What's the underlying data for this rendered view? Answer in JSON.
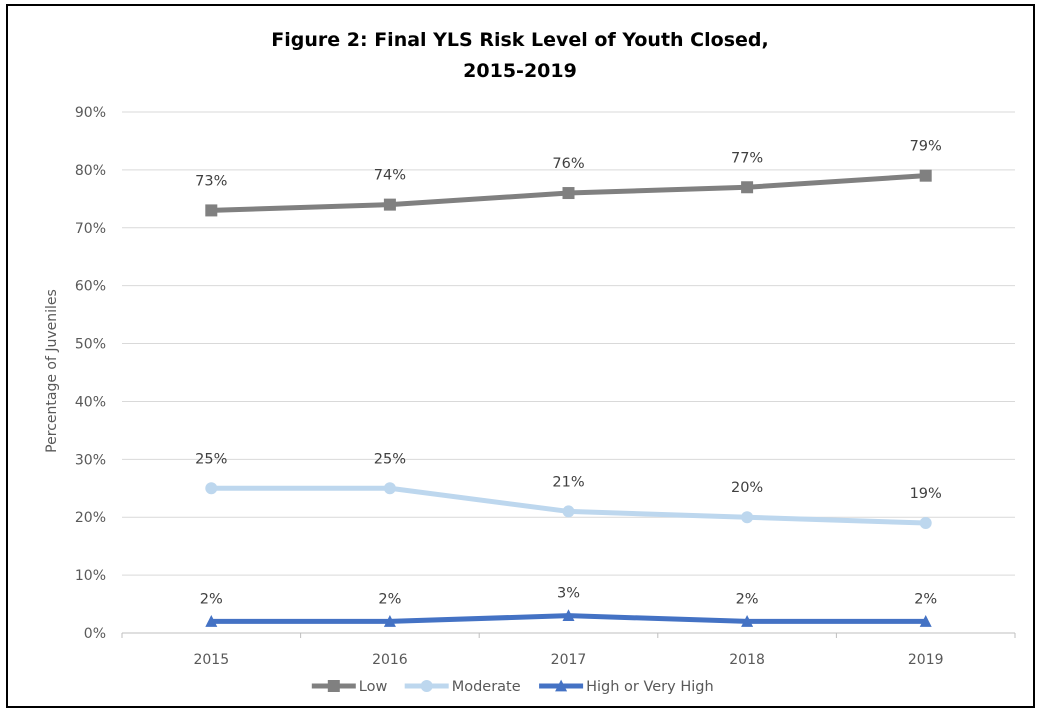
{
  "chart_data": {
    "type": "line",
    "title_lines": [
      "Figure 2: Final YLS Risk Level of Youth Closed,",
      "2015-2019"
    ],
    "xlabel": "",
    "ylabel": "Percentage of Juveniles",
    "categories": [
      "2015",
      "2016",
      "2017",
      "2018",
      "2019"
    ],
    "ylim": [
      0,
      90
    ],
    "yticks": [
      0,
      10,
      20,
      30,
      40,
      50,
      60,
      70,
      80,
      90
    ],
    "ytick_labels": [
      "0%",
      "10%",
      "20%",
      "30%",
      "40%",
      "50%",
      "60%",
      "70%",
      "80%",
      "90%"
    ],
    "grid": true,
    "legend_position": "bottom",
    "series": [
      {
        "name": "Low",
        "values": [
          73,
          74,
          76,
          77,
          79
        ],
        "labels": [
          "73%",
          "74%",
          "76%",
          "77%",
          "79%"
        ],
        "color": "#808080",
        "marker": "square"
      },
      {
        "name": "Moderate",
        "values": [
          25,
          25,
          21,
          20,
          19
        ],
        "labels": [
          "25%",
          "25%",
          "21%",
          "20%",
          "19%"
        ],
        "color": "#BDD7EE",
        "marker": "circle"
      },
      {
        "name": "High or Very High",
        "values": [
          2,
          2,
          3,
          2,
          2
        ],
        "labels": [
          "2%",
          "2%",
          "3%",
          "2%",
          "2%"
        ],
        "color": "#4472C4",
        "marker": "triangle"
      }
    ]
  }
}
